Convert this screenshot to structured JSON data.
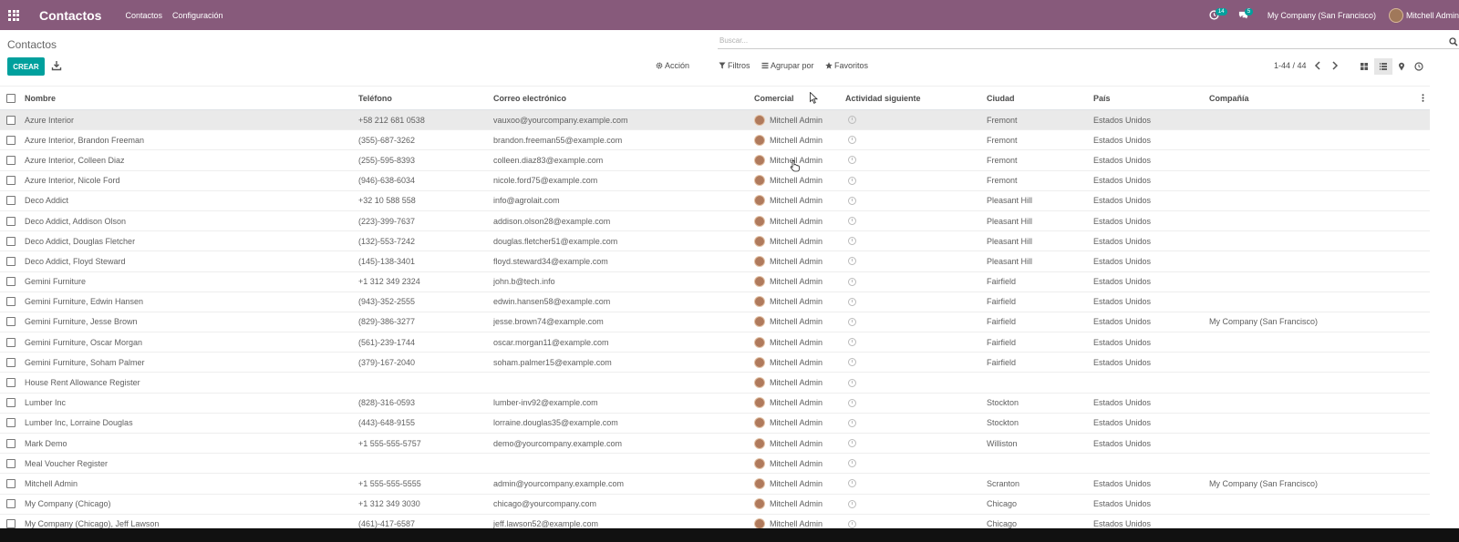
{
  "navbar": {
    "app_title": "Contactos",
    "menu": [
      "Contactos",
      "Configuración"
    ],
    "activity_count": "14",
    "messages_count": "5",
    "company": "My Company (San Francisco)",
    "user": "Mitchell Admin",
    "accent_color": "#875a7b"
  },
  "control_panel": {
    "breadcrumb": "Contactos",
    "search_placeholder": "Buscar...",
    "create_label": "CREAR",
    "action_label": "Acción",
    "filters_label": "Filtros",
    "groupby_label": "Agrupar por",
    "favorites_label": "Favoritos",
    "pager": "1-44 / 44"
  },
  "table": {
    "headers": {
      "name": "Nombre",
      "phone": "Teléfono",
      "email": "Correo electrónico",
      "salesperson": "Comercial",
      "activity": "Actividad siguiente",
      "city": "Ciudad",
      "country": "País",
      "company": "Compañía"
    },
    "rows": [
      {
        "name": "Azure Interior",
        "phone": "+58 212 681 0538",
        "email": "vauxoo@yourcompany.example.com",
        "salesperson": "Mitchell Admin",
        "city": "Fremont",
        "country": "Estados Unidos",
        "company": ""
      },
      {
        "name": "Azure Interior, Brandon Freeman",
        "phone": "(355)-687-3262",
        "email": "brandon.freeman55@example.com",
        "salesperson": "Mitchell Admin",
        "city": "Fremont",
        "country": "Estados Unidos",
        "company": ""
      },
      {
        "name": "Azure Interior, Colleen Diaz",
        "phone": "(255)-595-8393",
        "email": "colleen.diaz83@example.com",
        "salesperson": "Mitchell Admin",
        "city": "Fremont",
        "country": "Estados Unidos",
        "company": ""
      },
      {
        "name": "Azure Interior, Nicole Ford",
        "phone": "(946)-638-6034",
        "email": "nicole.ford75@example.com",
        "salesperson": "Mitchell Admin",
        "city": "Fremont",
        "country": "Estados Unidos",
        "company": ""
      },
      {
        "name": "Deco Addict",
        "phone": "+32 10 588 558",
        "email": "info@agrolait.com",
        "salesperson": "Mitchell Admin",
        "city": "Pleasant Hill",
        "country": "Estados Unidos",
        "company": ""
      },
      {
        "name": "Deco Addict, Addison Olson",
        "phone": "(223)-399-7637",
        "email": "addison.olson28@example.com",
        "salesperson": "Mitchell Admin",
        "city": "Pleasant Hill",
        "country": "Estados Unidos",
        "company": ""
      },
      {
        "name": "Deco Addict, Douglas Fletcher",
        "phone": "(132)-553-7242",
        "email": "douglas.fletcher51@example.com",
        "salesperson": "Mitchell Admin",
        "city": "Pleasant Hill",
        "country": "Estados Unidos",
        "company": ""
      },
      {
        "name": "Deco Addict, Floyd Steward",
        "phone": "(145)-138-3401",
        "email": "floyd.steward34@example.com",
        "salesperson": "Mitchell Admin",
        "city": "Pleasant Hill",
        "country": "Estados Unidos",
        "company": ""
      },
      {
        "name": "Gemini Furniture",
        "phone": "+1 312 349 2324",
        "email": "john.b@tech.info",
        "salesperson": "Mitchell Admin",
        "city": "Fairfield",
        "country": "Estados Unidos",
        "company": ""
      },
      {
        "name": "Gemini Furniture, Edwin Hansen",
        "phone": "(943)-352-2555",
        "email": "edwin.hansen58@example.com",
        "salesperson": "Mitchell Admin",
        "city": "Fairfield",
        "country": "Estados Unidos",
        "company": ""
      },
      {
        "name": "Gemini Furniture, Jesse Brown",
        "phone": "(829)-386-3277",
        "email": "jesse.brown74@example.com",
        "salesperson": "Mitchell Admin",
        "city": "Fairfield",
        "country": "Estados Unidos",
        "company": "My Company (San Francisco)"
      },
      {
        "name": "Gemini Furniture, Oscar Morgan",
        "phone": "(561)-239-1744",
        "email": "oscar.morgan11@example.com",
        "salesperson": "Mitchell Admin",
        "city": "Fairfield",
        "country": "Estados Unidos",
        "company": ""
      },
      {
        "name": "Gemini Furniture, Soham Palmer",
        "phone": "(379)-167-2040",
        "email": "soham.palmer15@example.com",
        "salesperson": "Mitchell Admin",
        "city": "Fairfield",
        "country": "Estados Unidos",
        "company": ""
      },
      {
        "name": "House Rent Allowance Register",
        "phone": "",
        "email": "",
        "salesperson": "Mitchell Admin",
        "city": "",
        "country": "",
        "company": ""
      },
      {
        "name": "Lumber Inc",
        "phone": "(828)-316-0593",
        "email": "lumber-inv92@example.com",
        "salesperson": "Mitchell Admin",
        "city": "Stockton",
        "country": "Estados Unidos",
        "company": ""
      },
      {
        "name": "Lumber Inc, Lorraine Douglas",
        "phone": "(443)-648-9155",
        "email": "lorraine.douglas35@example.com",
        "salesperson": "Mitchell Admin",
        "city": "Stockton",
        "country": "Estados Unidos",
        "company": ""
      },
      {
        "name": "Mark Demo",
        "phone": "+1 555-555-5757",
        "email": "demo@yourcompany.example.com",
        "salesperson": "Mitchell Admin",
        "city": "Williston",
        "country": "Estados Unidos",
        "company": ""
      },
      {
        "name": "Meal Voucher Register",
        "phone": "",
        "email": "",
        "salesperson": "Mitchell Admin",
        "city": "",
        "country": "",
        "company": ""
      },
      {
        "name": "Mitchell Admin",
        "phone": "+1 555-555-5555",
        "email": "admin@yourcompany.example.com",
        "salesperson": "Mitchell Admin",
        "city": "Scranton",
        "country": "Estados Unidos",
        "company": "My Company (San Francisco)"
      },
      {
        "name": "My Company (Chicago)",
        "phone": "+1 312 349 3030",
        "email": "chicago@yourcompany.com",
        "salesperson": "Mitchell Admin",
        "city": "Chicago",
        "country": "Estados Unidos",
        "company": ""
      },
      {
        "name": "My Company (Chicago), Jeff Lawson",
        "phone": "(461)-417-6587",
        "email": "jeff.lawson52@example.com",
        "salesperson": "Mitchell Admin",
        "city": "Chicago",
        "country": "Estados Unidos",
        "company": ""
      }
    ]
  }
}
